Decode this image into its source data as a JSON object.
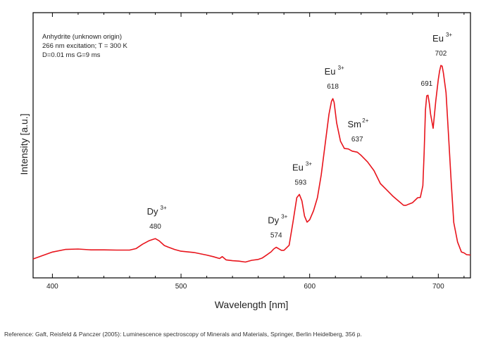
{
  "chart_data": {
    "type": "line",
    "title": "",
    "xlabel": "Wavelength [nm]",
    "ylabel": "Intensity [a.u.]",
    "xlim": [
      385,
      725
    ],
    "ylim": [
      0,
      100
    ],
    "x_ticks": [
      400,
      500,
      600,
      700
    ],
    "y_ticks_labeled": false,
    "grid": false,
    "legend": "none",
    "info_lines": [
      "Anhydrite (unknown origin)",
      "266 nm excitation; T = 300 K",
      "D=0.01 ms G=9 ms"
    ],
    "series": [
      {
        "color": "#e8141c",
        "x": [
          385,
          400,
          410,
          420,
          430,
          440,
          450,
          460,
          465,
          470,
          475,
          478,
          480,
          483,
          487,
          490,
          495,
          500,
          510,
          520,
          525,
          530,
          532,
          535,
          540,
          545,
          550,
          555,
          560,
          563,
          566,
          570,
          572,
          574,
          576,
          578,
          580,
          584,
          587,
          590,
          592,
          594,
          596,
          598,
          600,
          603,
          606,
          609,
          612,
          615,
          617,
          618,
          619,
          621,
          624,
          627,
          630,
          633,
          637,
          640,
          645,
          650,
          655,
          660,
          665,
          670,
          673,
          675,
          677,
          680,
          684,
          686,
          688,
          689,
          690,
          691,
          692,
          693,
          694,
          696,
          698,
          700,
          701,
          702,
          703,
          704,
          706,
          708,
          710,
          712,
          715,
          718,
          720,
          722,
          725
        ],
        "y": [
          3.2,
          6.4,
          7.6,
          7.8,
          7.4,
          7.4,
          7.3,
          7.3,
          8.0,
          10.0,
          11.6,
          12.2,
          12.6,
          11.6,
          9.4,
          8.7,
          7.6,
          6.8,
          6.2,
          5.0,
          4.3,
          3.4,
          4.3,
          2.8,
          2.4,
          2.2,
          1.8,
          2.6,
          3.0,
          3.6,
          4.8,
          6.5,
          7.8,
          8.6,
          7.9,
          7.2,
          7.2,
          9.5,
          20.0,
          31.5,
          33.0,
          30.0,
          23.0,
          20.2,
          21.3,
          25.5,
          31.5,
          42.0,
          56.0,
          70.0,
          76.0,
          77.2,
          75.5,
          66.0,
          57.5,
          54.2,
          54.0,
          53.0,
          52.5,
          51.0,
          48.0,
          44.0,
          38.0,
          35.0,
          32.0,
          29.5,
          28.0,
          28.0,
          28.5,
          29.2,
          31.5,
          31.6,
          37.0,
          52.0,
          72.0,
          78.5,
          78.8,
          75.0,
          70.0,
          63.5,
          76.0,
          86.0,
          90.0,
          92.5,
          92.2,
          89.0,
          80.0,
          60.0,
          39.0,
          20.0,
          11.0,
          6.4,
          6.0,
          5.2,
          5.0
        ]
      }
    ],
    "annotations": [
      {
        "ion": "Dy",
        "charge": "3+",
        "value": "480",
        "x": 480,
        "y": 12.6
      },
      {
        "ion": "Dy",
        "charge": "3+",
        "value": "574",
        "x": 574,
        "y": 8.6
      },
      {
        "ion": "Eu",
        "charge": "3+",
        "value": "593",
        "x": 593,
        "y": 33.0
      },
      {
        "ion": "Eu",
        "charge": "3+",
        "value": "618",
        "x": 618,
        "y": 77.2
      },
      {
        "ion": "Sm",
        "charge": "2+",
        "value": "637",
        "x": 637,
        "y": 53.0
      },
      {
        "ion": "",
        "charge": "",
        "value": "691",
        "x": 691,
        "y": 78.5
      },
      {
        "ion": "Eu",
        "charge": "3+",
        "value": "702",
        "x": 702,
        "y": 92.5
      }
    ]
  },
  "caption": "Reference: Gaft, Reisfeld & Panczer (2005): Luminescence spectroscopy of Minerals and Materials, Springer, Berlin Heidelberg, 356 p."
}
